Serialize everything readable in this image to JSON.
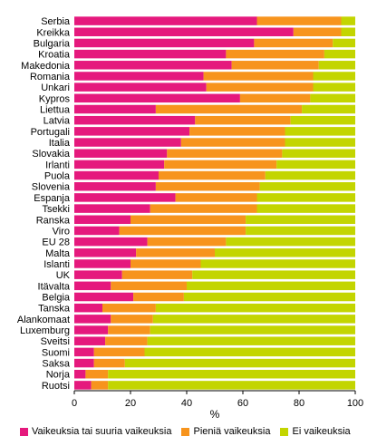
{
  "chart_data": {
    "type": "bar",
    "orientation": "horizontal",
    "stacked": true,
    "title": "",
    "xlabel": "%",
    "ylabel": "",
    "xlim": [
      0,
      100
    ],
    "xticks": [
      0,
      20,
      40,
      60,
      80,
      100
    ],
    "grid": false,
    "legend_position": "bottom",
    "categories": [
      "Serbia",
      "Kreikka",
      "Bulgaria",
      "Kroatia",
      "Makedonia",
      "Romania",
      "Unkari",
      "Kypros",
      "Liettua",
      "Latvia",
      "Portugali",
      "Italia",
      "Slovakia",
      "Irlanti",
      "Puola",
      "Slovenia",
      "Espanja",
      "Tsekki",
      "Ranska",
      "Viro",
      "EU 28",
      "Malta",
      "Islanti",
      "UK",
      "Itävalta",
      "Belgia",
      "Tanska",
      "Alankomaat",
      "Luxemburg",
      "Sveitsi",
      "Suomi",
      "Saksa",
      "Norja",
      "Ruotsi"
    ],
    "series": [
      {
        "name": "Vaikeuksia tai suuria vaikeuksia",
        "color": "#e5197d",
        "values": [
          65,
          78,
          64,
          54,
          56,
          46,
          47,
          59,
          29,
          43,
          41,
          38,
          33,
          32,
          30,
          29,
          36,
          27,
          20,
          16,
          26,
          22,
          20,
          17,
          13,
          21,
          10,
          13,
          12,
          11,
          7,
          7,
          4,
          6
        ]
      },
      {
        "name": "Pieniä vaikeuksia",
        "color": "#f7941d",
        "values": [
          30,
          17,
          28,
          35,
          31,
          39,
          38,
          25,
          52,
          34,
          34,
          37,
          41,
          40,
          38,
          37,
          29,
          38,
          41,
          45,
          28,
          28,
          25,
          25,
          27,
          18,
          19,
          15,
          15,
          15,
          18,
          11,
          8,
          6
        ]
      },
      {
        "name": "Ei vaikeuksia",
        "color": "#c3d500",
        "values": [
          5,
          5,
          8,
          11,
          13,
          15,
          15,
          16,
          19,
          23,
          25,
          25,
          26,
          28,
          32,
          34,
          35,
          35,
          39,
          39,
          46,
          50,
          55,
          58,
          60,
          61,
          71,
          72,
          73,
          74,
          75,
          82,
          88,
          88
        ]
      }
    ]
  }
}
